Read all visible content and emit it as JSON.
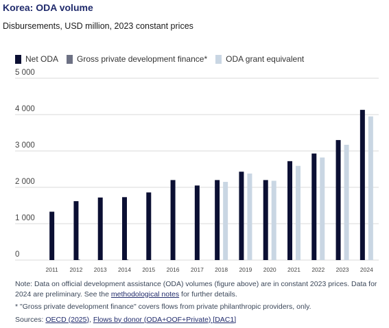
{
  "title": "Korea: ODA volume",
  "subtitle": "Disbursements, USD million, 2023 constant prices",
  "colors": {
    "net_oda": "#0b0f33",
    "gross_private": "#6d7184",
    "grant_equivalent": "#c9d6e3",
    "grid": "#d9d9d9",
    "axis_text": "#444444"
  },
  "chart_data": {
    "type": "bar",
    "categories": [
      "2011",
      "2012",
      "2013",
      "2014",
      "2015",
      "2016",
      "2017",
      "2018",
      "2019",
      "2020",
      "2021",
      "2022",
      "2023",
      "2024"
    ],
    "series": [
      {
        "name": "Net ODA",
        "values": [
          1330,
          1620,
          1720,
          1730,
          1860,
          2200,
          2050,
          2200,
          2430,
          2200,
          2720,
          2930,
          3300,
          4130
        ]
      },
      {
        "name": "Gross private development finance*",
        "values": [
          null,
          1,
          null,
          1,
          null,
          null,
          null,
          null,
          null,
          null,
          null,
          null,
          null,
          null
        ]
      },
      {
        "name": "ODA grant equivalent",
        "values": [
          null,
          null,
          null,
          null,
          null,
          null,
          null,
          2150,
          2380,
          2180,
          2590,
          2820,
          3170,
          3950
        ]
      }
    ],
    "yticks": [
      "0",
      "1 000",
      "2 000",
      "3 000",
      "4 000",
      "5 000"
    ],
    "ylim": [
      0,
      5000
    ],
    "grid": true,
    "legend_position": "top-left"
  },
  "notes": {
    "line1_pre": "Note: Data on official development assistance (ODA) volumes (figure above) are in constant 2023 prices. Data for 2024 are preliminary. See the ",
    "line1_link": "methodological notes",
    "line1_post": " for further details.",
    "line2": "* \"Gross private development finance\" covers flows from private philanthropic providers, only.",
    "sources_label": "Sources: ",
    "source1": "OECD (2025)",
    "sep": ", ",
    "source2": "Flows by donor (ODA+OOF+Private) [DAC1]"
  }
}
